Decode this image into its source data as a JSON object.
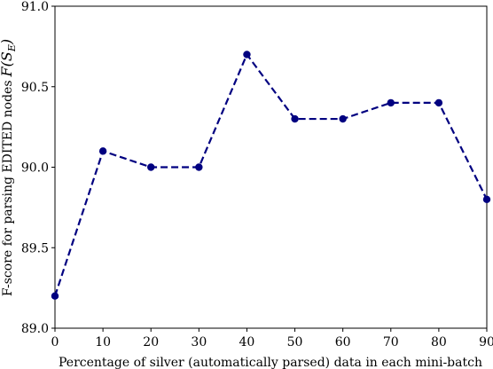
{
  "chart_data": {
    "type": "line",
    "title": "",
    "xlabel": "Percentage of silver (automatically parsed) data in each mini-batch",
    "ylabel": "F-score for parsing EDITED nodes",
    "ylabel_math": "F(S",
    "ylabel_math_sub": "E",
    "ylabel_math_close": ")",
    "xlim": [
      0,
      90
    ],
    "ylim": [
      89.0,
      91.0
    ],
    "xticks": [
      0,
      10,
      20,
      30,
      40,
      50,
      60,
      70,
      80,
      90
    ],
    "xtick_labels": [
      "0",
      "10",
      "20",
      "30",
      "40",
      "50",
      "60",
      "70",
      "80",
      "90"
    ],
    "yticks": [
      89.0,
      89.5,
      90.0,
      90.5,
      91.0
    ],
    "ytick_labels": [
      "89.0",
      "89.5",
      "90.0",
      "90.5",
      "91.0"
    ],
    "grid": false,
    "series": [
      {
        "x": [
          0,
          10,
          20,
          30,
          40,
          50,
          60,
          70,
          80,
          90
        ],
        "y": [
          89.2,
          90.1,
          90.0,
          90.0,
          90.7,
          90.3,
          90.3,
          90.4,
          90.4,
          89.8
        ],
        "color": "#000080",
        "line_style": "dashed",
        "marker": "circle"
      }
    ]
  }
}
